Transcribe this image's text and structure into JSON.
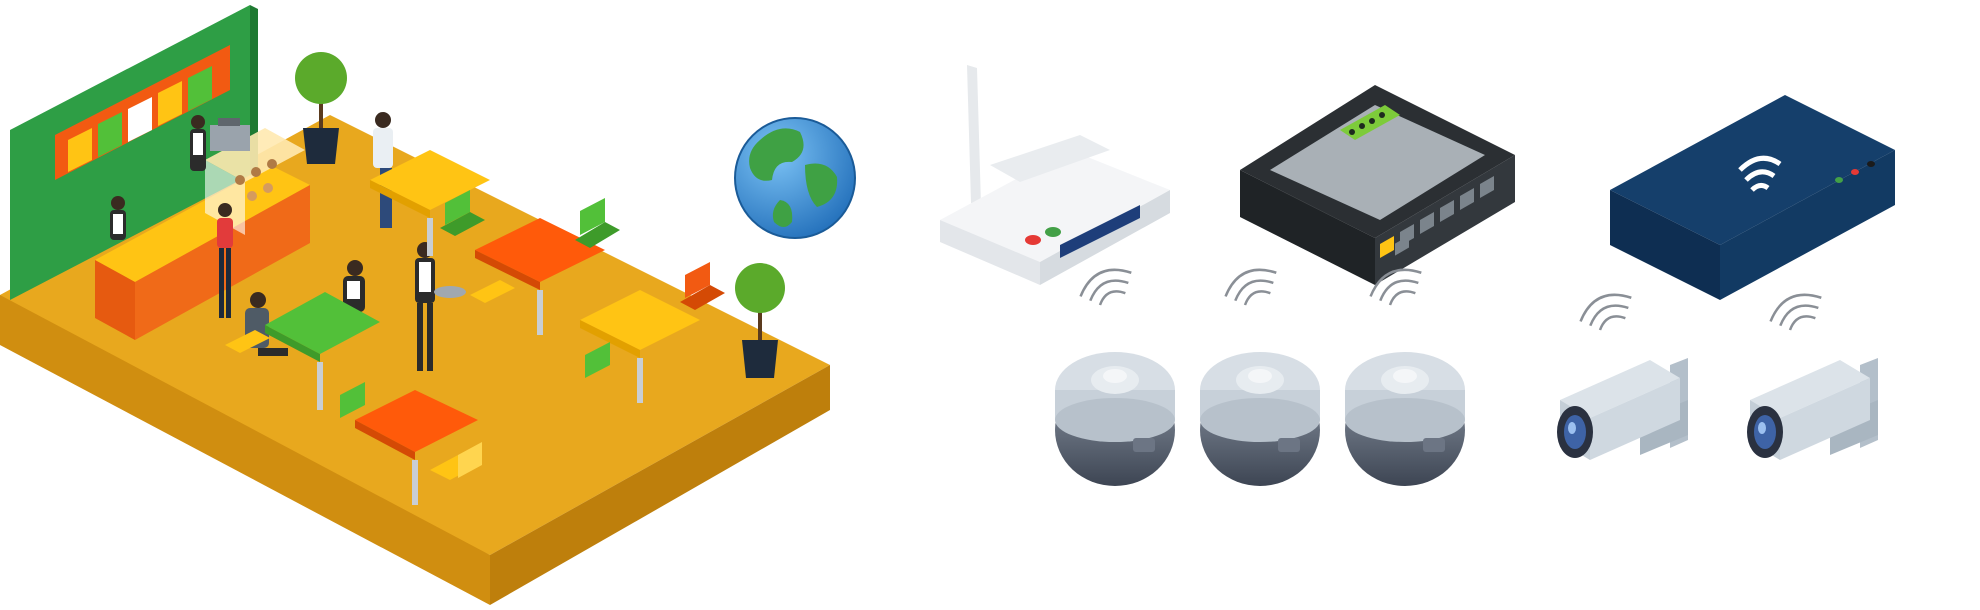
{
  "illustration": {
    "palette": {
      "floor_top": "#E8A81E",
      "floor_side": "#D69410",
      "wall_green": "#2E9E45",
      "menu_orange": "#F25A12",
      "table_orange": "#FF5A0A",
      "table_yellow": "#FFC414",
      "table_green": "#52C039",
      "router_white": "#F4F5F7",
      "switch_black": "#2B2F33",
      "nvr_navy": "#123A63",
      "camera_grey": "#C9D3DC",
      "globe_ocean": "#2C7FD0",
      "globe_land": "#3FA144"
    },
    "icons": [
      "cafe-floor-icon",
      "menu-board-icon",
      "counter-icon",
      "globe-icon",
      "wireless-router-icon",
      "network-switch-icon",
      "nvr-recorder-icon",
      "dome-camera-icon",
      "bullet-camera-icon",
      "wifi-signal-icon"
    ],
    "dome_camera_count": 3,
    "bullet_camera_count": 2
  }
}
